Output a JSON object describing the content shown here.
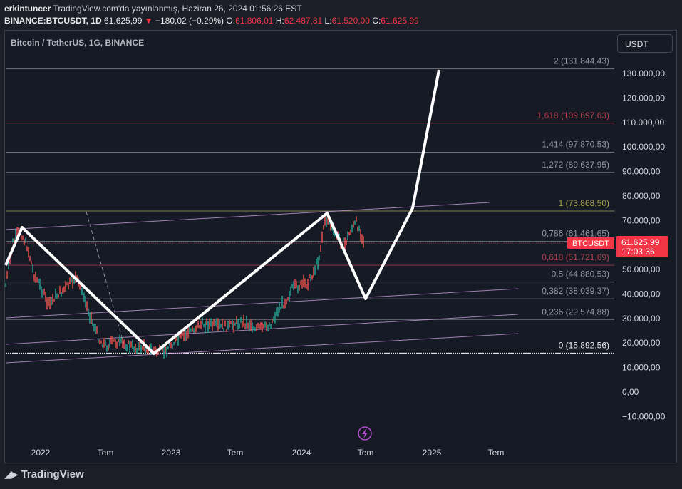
{
  "header": {
    "author": "erkintuncer",
    "published": "TradingView.com'da yayınlanmış, Haziran 26, 2024 01:56:26 EST",
    "symbol": "BINANCE:BTCUSDT, 1D",
    "price": "61.625,99",
    "change": "−180,02 (−0.29%)",
    "open_label": "O:",
    "open": "61.806,01",
    "high_label": "H:",
    "high": "62.487,81",
    "low_label": "L:",
    "low": "61.520,00",
    "close_label": "C:",
    "close": "61.625,99"
  },
  "chart": {
    "title": "Bitcoin / TetherUS, 1G, BINANCE",
    "currency": "USDT",
    "price_badge": {
      "symbol": "BTCUSDT",
      "price": "61.625,99",
      "countdown": "17:03:36"
    },
    "y_ticks": [
      "130.000,00",
      "120.000,00",
      "110.000,00",
      "100.000,00",
      "90.000,00",
      "80.000,00",
      "70.000,00",
      "60.000,00",
      "50.000,00",
      "40.000,00",
      "30.000,00",
      "20.000,00",
      "10.000,00",
      "0,00",
      "−10.000,00"
    ],
    "x_ticks": [
      "2022",
      "Tem",
      "2023",
      "Tem",
      "2024",
      "Tem",
      "2025",
      "Tem"
    ],
    "fib_levels": [
      {
        "label": "2 (131.844,43)",
        "color": "#9598a1"
      },
      {
        "label": "1,618 (109.697,63)",
        "color": "#b0414e"
      },
      {
        "label": "1,414 (97.870,53)",
        "color": "#9598a1"
      },
      {
        "label": "1,272 (89.637,95)",
        "color": "#9598a1"
      },
      {
        "label": "1 (73.868,50)",
        "color": "#a8a34a"
      },
      {
        "label": "0,786 (61.461,65)",
        "color": "#9598a1"
      },
      {
        "label": "0,618 (51.721,69)",
        "color": "#b0414e"
      },
      {
        "label": "0,5 (44.880,53)",
        "color": "#9598a1"
      },
      {
        "label": "0,382 (38.039,37)",
        "color": "#9598a1"
      },
      {
        "label": "0,236 (29.574,88)",
        "color": "#9598a1"
      },
      {
        "label": "0 (15.892,56)",
        "color": "#e8eaed"
      }
    ]
  },
  "footer": {
    "brand": "TradingView",
    "logo_icon": "tradingview-logo-icon"
  },
  "icons": {
    "flash": "lightning-icon"
  }
}
